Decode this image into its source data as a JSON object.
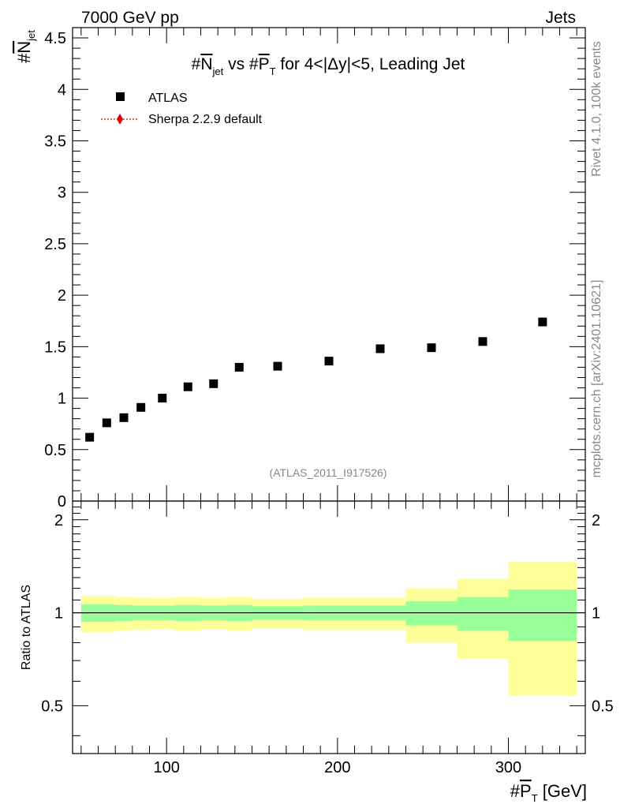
{
  "header": {
    "energy": "7000 GeV pp",
    "category": "Jets"
  },
  "side_text": {
    "rivet": "Rivet 4.1.0,  100k events",
    "site": "mcplots.cern.ch [arXiv:2401.10621]"
  },
  "watermark": "(ATLAS_2011_I917526)",
  "chart_data": {
    "type": "scatter",
    "title": {
      "p1": "#",
      "n": "N",
      "n_sub": "jet",
      "p2": " vs #",
      "p": "P",
      "p_sub": "T",
      "p3": " for 4<|Δy|<5, Leading Jet"
    },
    "xlabel": {
      "p1": "#",
      "p": "P",
      "p_sub": "T",
      "p2": " [GeV]"
    },
    "ylabel": {
      "p1": "#",
      "n": "N",
      "n_sub": "jet"
    },
    "xlim": [
      45,
      345
    ],
    "ylim": [
      0,
      4.6
    ],
    "x_ticks": [
      100,
      200,
      300
    ],
    "x_tick_labels": [
      "100",
      "200",
      "300"
    ],
    "y_ticks": [
      0,
      0.5,
      1,
      1.5,
      2,
      2.5,
      3,
      3.5,
      4,
      4.5
    ],
    "y_tick_labels": [
      "0",
      "0.5",
      "1",
      "1.5",
      "2",
      "2.5",
      "3",
      "3.5",
      "4",
      "4.5"
    ],
    "legend": {
      "placement": "top-left",
      "entries": [
        {
          "label": "ATLAS",
          "marker": "square",
          "color": "#000000"
        },
        {
          "label": "Sherpa 2.2.9 default",
          "marker": "diamond",
          "color": "#dd0000"
        }
      ]
    },
    "series": [
      {
        "name": "ATLAS",
        "x": [
          55,
          65,
          75,
          85,
          97.5,
          112.5,
          127.5,
          142.5,
          165,
          195,
          225,
          255,
          285,
          320
        ],
        "values": [
          0.62,
          0.76,
          0.81,
          0.91,
          1.0,
          1.11,
          1.14,
          1.3,
          1.31,
          1.36,
          1.48,
          1.49,
          1.55,
          1.74
        ]
      }
    ],
    "ratio": {
      "ylabel": "Ratio to ATLAS",
      "ylim": [
        0.35,
        2.3
      ],
      "y_ticks": [
        0.5,
        1,
        2
      ],
      "y_tick_labels": [
        "0.5",
        "1",
        "2"
      ],
      "bins": [
        {
          "lo": 50,
          "hi": 60,
          "inner": [
            0.935,
            1.065
          ],
          "outer": [
            0.865,
            1.135
          ]
        },
        {
          "lo": 60,
          "hi": 70,
          "inner": [
            0.935,
            1.065
          ],
          "outer": [
            0.865,
            1.135
          ]
        },
        {
          "lo": 70,
          "hi": 80,
          "inner": [
            0.94,
            1.06
          ],
          "outer": [
            0.875,
            1.125
          ]
        },
        {
          "lo": 80,
          "hi": 90,
          "inner": [
            0.945,
            1.055
          ],
          "outer": [
            0.88,
            1.12
          ]
        },
        {
          "lo": 90,
          "hi": 105,
          "inner": [
            0.945,
            1.055
          ],
          "outer": [
            0.885,
            1.115
          ]
        },
        {
          "lo": 105,
          "hi": 120,
          "inner": [
            0.94,
            1.06
          ],
          "outer": [
            0.875,
            1.125
          ]
        },
        {
          "lo": 120,
          "hi": 135,
          "inner": [
            0.945,
            1.055
          ],
          "outer": [
            0.885,
            1.115
          ]
        },
        {
          "lo": 135,
          "hi": 150,
          "inner": [
            0.94,
            1.06
          ],
          "outer": [
            0.875,
            1.125
          ]
        },
        {
          "lo": 150,
          "hi": 180,
          "inner": [
            0.95,
            1.05
          ],
          "outer": [
            0.89,
            1.11
          ]
        },
        {
          "lo": 180,
          "hi": 210,
          "inner": [
            0.945,
            1.055
          ],
          "outer": [
            0.88,
            1.12
          ]
        },
        {
          "lo": 210,
          "hi": 240,
          "inner": [
            0.945,
            1.055
          ],
          "outer": [
            0.88,
            1.12
          ]
        },
        {
          "lo": 240,
          "hi": 270,
          "inner": [
            0.91,
            1.09
          ],
          "outer": [
            0.8,
            1.2
          ]
        },
        {
          "lo": 270,
          "hi": 300,
          "inner": [
            0.875,
            1.125
          ],
          "outer": [
            0.71,
            1.29
          ]
        },
        {
          "lo": 300,
          "hi": 340,
          "inner": [
            0.81,
            1.19
          ],
          "outer": [
            0.54,
            1.46
          ]
        }
      ]
    }
  },
  "colors": {
    "inner_band": "#99ff99",
    "outer_band": "#ffff99",
    "axis": "#000000",
    "marker": "#000000",
    "mc_line": "#dd0000",
    "side_text": "#888888"
  }
}
